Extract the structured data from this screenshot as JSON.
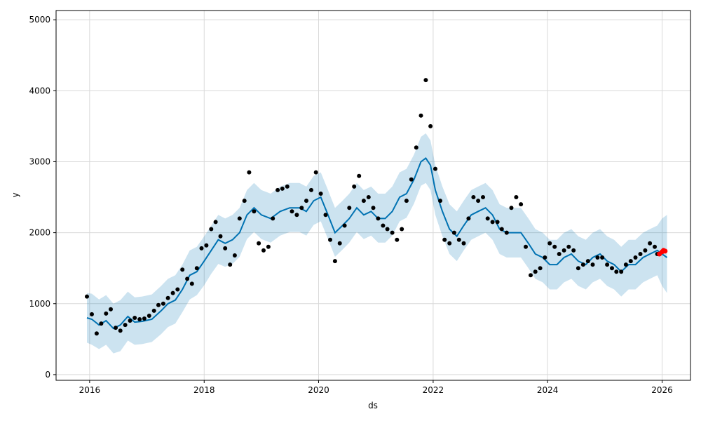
{
  "chart_data": {
    "type": "line",
    "title": "",
    "xlabel": "ds",
    "ylabel": "y",
    "xlim": [
      "2015-06-01",
      "2026-07-01"
    ],
    "ylim": [
      -80,
      5130
    ],
    "grid": true,
    "xticks": [
      {
        "value": "2016-01-01",
        "label": "2016"
      },
      {
        "value": "2018-01-01",
        "label": "2018"
      },
      {
        "value": "2020-01-01",
        "label": "2020"
      },
      {
        "value": "2022-01-01",
        "label": "2022"
      },
      {
        "value": "2024-01-01",
        "label": "2024"
      },
      {
        "value": "2026-01-01",
        "label": "2026"
      }
    ],
    "yticks": [
      {
        "value": 0,
        "label": "0"
      },
      {
        "value": 1000,
        "label": "1000"
      },
      {
        "value": 2000,
        "label": "2000"
      },
      {
        "value": 3000,
        "label": "3000"
      },
      {
        "value": 4000,
        "label": "4000"
      },
      {
        "value": 5000,
        "label": "5000"
      }
    ],
    "colors": {
      "forecast_line": "#0072B2",
      "uncertainty_band": "#0072B2",
      "observed_points": "#000000",
      "recent_points": "#ff0000",
      "grid": "#d9d9d9"
    },
    "series": [
      {
        "kind": "observed",
        "x": [
          "2015-12-15",
          "2016-01-15",
          "2016-02-15",
          "2016-03-15",
          "2016-04-15",
          "2016-05-15",
          "2016-06-15",
          "2016-07-15",
          "2016-08-15",
          "2016-09-15",
          "2016-10-15",
          "2016-11-15",
          "2016-12-15",
          "2017-01-15",
          "2017-02-15",
          "2017-03-15",
          "2017-04-15",
          "2017-05-15",
          "2017-06-15",
          "2017-07-15",
          "2017-08-15",
          "2017-09-15",
          "2017-10-15",
          "2017-11-15",
          "2017-12-15",
          "2018-01-15",
          "2018-02-15",
          "2018-03-15",
          "2018-04-15",
          "2018-05-15",
          "2018-06-15",
          "2018-07-15",
          "2018-08-15",
          "2018-09-15",
          "2018-10-15",
          "2018-11-15",
          "2018-12-15",
          "2019-01-15",
          "2019-02-15",
          "2019-03-15",
          "2019-04-15",
          "2019-05-15",
          "2019-06-15",
          "2019-07-15",
          "2019-08-15",
          "2019-09-15",
          "2019-10-15",
          "2019-11-15",
          "2019-12-15",
          "2020-01-15",
          "2020-02-15",
          "2020-03-15",
          "2020-04-15",
          "2020-05-15",
          "2020-06-15",
          "2020-07-15",
          "2020-08-15",
          "2020-09-15",
          "2020-10-15",
          "2020-11-15",
          "2020-12-15",
          "2021-01-15",
          "2021-02-15",
          "2021-03-15",
          "2021-04-15",
          "2021-05-15",
          "2021-06-15",
          "2021-07-15",
          "2021-08-15",
          "2021-09-15",
          "2021-10-15",
          "2021-11-15",
          "2021-12-15",
          "2022-01-15",
          "2022-02-15",
          "2022-03-15",
          "2022-04-15",
          "2022-05-15",
          "2022-06-15",
          "2022-07-15",
          "2022-08-15",
          "2022-09-15",
          "2022-10-15",
          "2022-11-15",
          "2022-12-15",
          "2023-01-15",
          "2023-02-15",
          "2023-03-15",
          "2023-04-15",
          "2023-05-15",
          "2023-06-15",
          "2023-07-15",
          "2023-08-15",
          "2023-09-15",
          "2023-10-15",
          "2023-11-15",
          "2023-12-15",
          "2024-01-15",
          "2024-02-15",
          "2024-03-15",
          "2024-04-15",
          "2024-05-15",
          "2024-06-15",
          "2024-07-15",
          "2024-08-15",
          "2024-09-15",
          "2024-10-15",
          "2024-11-15",
          "2024-12-15",
          "2025-01-15",
          "2025-02-15",
          "2025-03-15",
          "2025-04-15",
          "2025-05-15",
          "2025-06-15",
          "2025-07-15",
          "2025-08-15",
          "2025-09-15",
          "2025-10-15",
          "2025-11-15",
          "2025-12-01"
        ],
        "y": [
          1100,
          850,
          580,
          720,
          860,
          920,
          660,
          620,
          700,
          760,
          800,
          780,
          790,
          830,
          900,
          980,
          1000,
          1080,
          1150,
          1200,
          1480,
          1350,
          1280,
          1500,
          1780,
          1820,
          2050,
          2150,
          1950,
          1780,
          1550,
          1680,
          2200,
          2450,
          2850,
          2300,
          1850,
          1750,
          1800,
          2200,
          2600,
          2620,
          2650,
          2300,
          2250,
          2350,
          2450,
          2600,
          2850,
          2550,
          2250,
          1900,
          1600,
          1850,
          2100,
          2350,
          2650,
          2800,
          2450,
          2500,
          2350,
          2200,
          2100,
          2050,
          2000,
          1900,
          2050,
          2450,
          2750,
          3200,
          3650,
          4150,
          3500,
          2900,
          2450,
          1900,
          1850,
          2000,
          1900,
          1850,
          2200,
          2500,
          2450,
          2500,
          2200,
          2150,
          2150,
          2050,
          2000,
          2350,
          2500,
          2400,
          1800,
          1400,
          1450,
          1500,
          1650,
          1850,
          1800,
          1700,
          1750,
          1800,
          1750,
          1500,
          1550,
          1600,
          1550,
          1650,
          1650,
          1550,
          1500,
          1450,
          1450,
          1550,
          1600,
          1650,
          1700,
          1750,
          1850,
          1800,
          1700
        ]
      },
      {
        "kind": "recent",
        "x": [
          "2025-12-15",
          "2026-01-01",
          "2026-01-10",
          "2026-01-20"
        ],
        "y": [
          1700,
          1730,
          1750,
          1740
        ]
      },
      {
        "kind": "forecast",
        "x": [
          "2015-12-15",
          "2016-01-15",
          "2016-03-01",
          "2016-04-15",
          "2016-06-01",
          "2016-07-15",
          "2016-09-01",
          "2016-10-15",
          "2016-12-01",
          "2017-02-01",
          "2017-04-01",
          "2017-05-15",
          "2017-07-01",
          "2017-08-15",
          "2017-10-01",
          "2017-11-15",
          "2018-01-01",
          "2018-02-15",
          "2018-04-01",
          "2018-05-15",
          "2018-07-01",
          "2018-08-15",
          "2018-10-01",
          "2018-11-15",
          "2019-01-01",
          "2019-03-01",
          "2019-05-01",
          "2019-07-01",
          "2019-09-01",
          "2019-10-15",
          "2019-12-01",
          "2020-01-15",
          "2020-03-01",
          "2020-04-15",
          "2020-06-01",
          "2020-07-15",
          "2020-09-01",
          "2020-10-15",
          "2020-12-01",
          "2021-01-15",
          "2021-03-01",
          "2021-04-15",
          "2021-06-01",
          "2021-07-15",
          "2021-09-01",
          "2021-10-15",
          "2021-11-15",
          "2021-12-15",
          "2022-01-15",
          "2022-03-01",
          "2022-04-15",
          "2022-06-01",
          "2022-07-15",
          "2022-09-01",
          "2022-10-15",
          "2022-12-01",
          "2023-01-15",
          "2023-03-01",
          "2023-04-15",
          "2023-06-01",
          "2023-07-15",
          "2023-09-01",
          "2023-10-15",
          "2023-12-01",
          "2024-01-15",
          "2024-03-01",
          "2024-04-15",
          "2024-06-01",
          "2024-07-15",
          "2024-09-01",
          "2024-10-15",
          "2024-12-01",
          "2025-01-15",
          "2025-03-01",
          "2025-04-15",
          "2025-06-01",
          "2025-07-15",
          "2025-09-01",
          "2025-10-15",
          "2025-12-01",
          "2026-01-01",
          "2026-02-01"
        ],
        "yhat": [
          800,
          780,
          700,
          760,
          650,
          700,
          820,
          740,
          750,
          780,
          900,
          1000,
          1050,
          1200,
          1400,
          1450,
          1600,
          1750,
          1900,
          1850,
          1900,
          2000,
          2250,
          2350,
          2250,
          2200,
          2300,
          2350,
          2350,
          2300,
          2450,
          2500,
          2250,
          2000,
          2100,
          2200,
          2350,
          2250,
          2300,
          2200,
          2200,
          2300,
          2500,
          2550,
          2750,
          3000,
          3050,
          2950,
          2600,
          2300,
          2050,
          1950,
          2100,
          2250,
          2300,
          2350,
          2250,
          2050,
          2000,
          2000,
          2000,
          1850,
          1700,
          1650,
          1550,
          1550,
          1650,
          1700,
          1600,
          1550,
          1650,
          1700,
          1600,
          1550,
          1450,
          1550,
          1550,
          1650,
          1700,
          1750,
          1700,
          1650
        ],
        "lower": [
          450,
          420,
          360,
          420,
          300,
          330,
          480,
          420,
          430,
          460,
          570,
          670,
          720,
          880,
          1060,
          1120,
          1260,
          1420,
          1560,
          1520,
          1560,
          1660,
          1910,
          2010,
          1910,
          1860,
          1960,
          2010,
          2010,
          1960,
          2110,
          2160,
          1910,
          1660,
          1760,
          1860,
          2010,
          1910,
          1960,
          1860,
          1860,
          1960,
          2160,
          2210,
          2410,
          2660,
          2700,
          2600,
          2250,
          1950,
          1700,
          1600,
          1750,
          1900,
          1950,
          2000,
          1900,
          1700,
          1650,
          1650,
          1650,
          1500,
          1350,
          1300,
          1200,
          1200,
          1300,
          1350,
          1250,
          1200,
          1300,
          1350,
          1250,
          1200,
          1100,
          1200,
          1200,
          1300,
          1350,
          1400,
          1250,
          1150
        ],
        "upper": [
          1150,
          1140,
          1060,
          1120,
          1000,
          1050,
          1170,
          1090,
          1100,
          1130,
          1250,
          1350,
          1400,
          1550,
          1750,
          1800,
          1950,
          2100,
          2250,
          2200,
          2250,
          2350,
          2600,
          2700,
          2600,
          2550,
          2650,
          2700,
          2700,
          2650,
          2800,
          2850,
          2600,
          2350,
          2450,
          2550,
          2700,
          2600,
          2650,
          2550,
          2550,
          2650,
          2850,
          2900,
          3100,
          3350,
          3400,
          3300,
          2950,
          2650,
          2400,
          2300,
          2450,
          2600,
          2650,
          2700,
          2600,
          2400,
          2350,
          2350,
          2350,
          2200,
          2050,
          2000,
          1900,
          1900,
          2000,
          2050,
          1950,
          1900,
          2000,
          2050,
          1950,
          1900,
          1800,
          1900,
          1900,
          2000,
          2050,
          2100,
          2200,
          2250
        ]
      }
    ]
  }
}
